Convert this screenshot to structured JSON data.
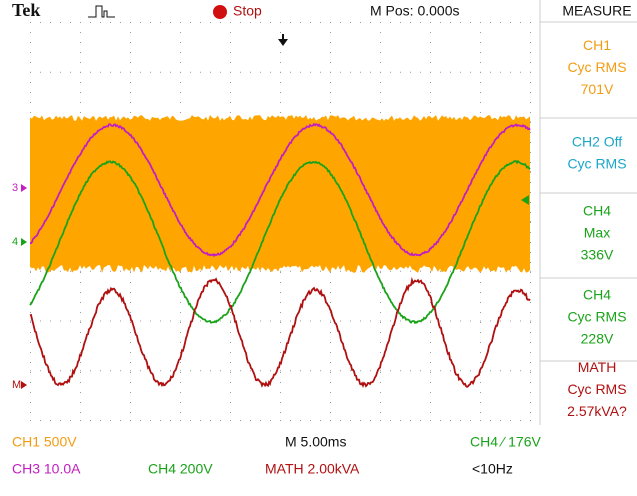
{
  "header": {
    "brand": "Tek",
    "state": "Stop",
    "position": "M Pos: 0.000s",
    "panel_title": "MEASURE"
  },
  "measurements": [
    {
      "lines": [
        "CH1",
        "Cyc RMS",
        "701V"
      ]
    },
    {
      "lines": [
        "CH2 Off",
        "Cyc RMS"
      ]
    },
    {
      "lines": [
        "CH4",
        "Max",
        "336V"
      ]
    },
    {
      "lines": [
        "CH4",
        "Cyc RMS",
        "228V"
      ]
    },
    {
      "lines": [
        "MATH",
        "Cyc RMS",
        "2.57kVA?"
      ]
    }
  ],
  "markers": [
    "3",
    "4",
    "M"
  ],
  "footer": {
    "row1": [
      "CH1  500V",
      "M 5.00ms",
      "CH4 ∕ 176V"
    ],
    "row2": [
      "CH3  10.0A",
      "CH4  200V",
      "MATH 2.00kVA",
      "<10Hz"
    ]
  }
}
